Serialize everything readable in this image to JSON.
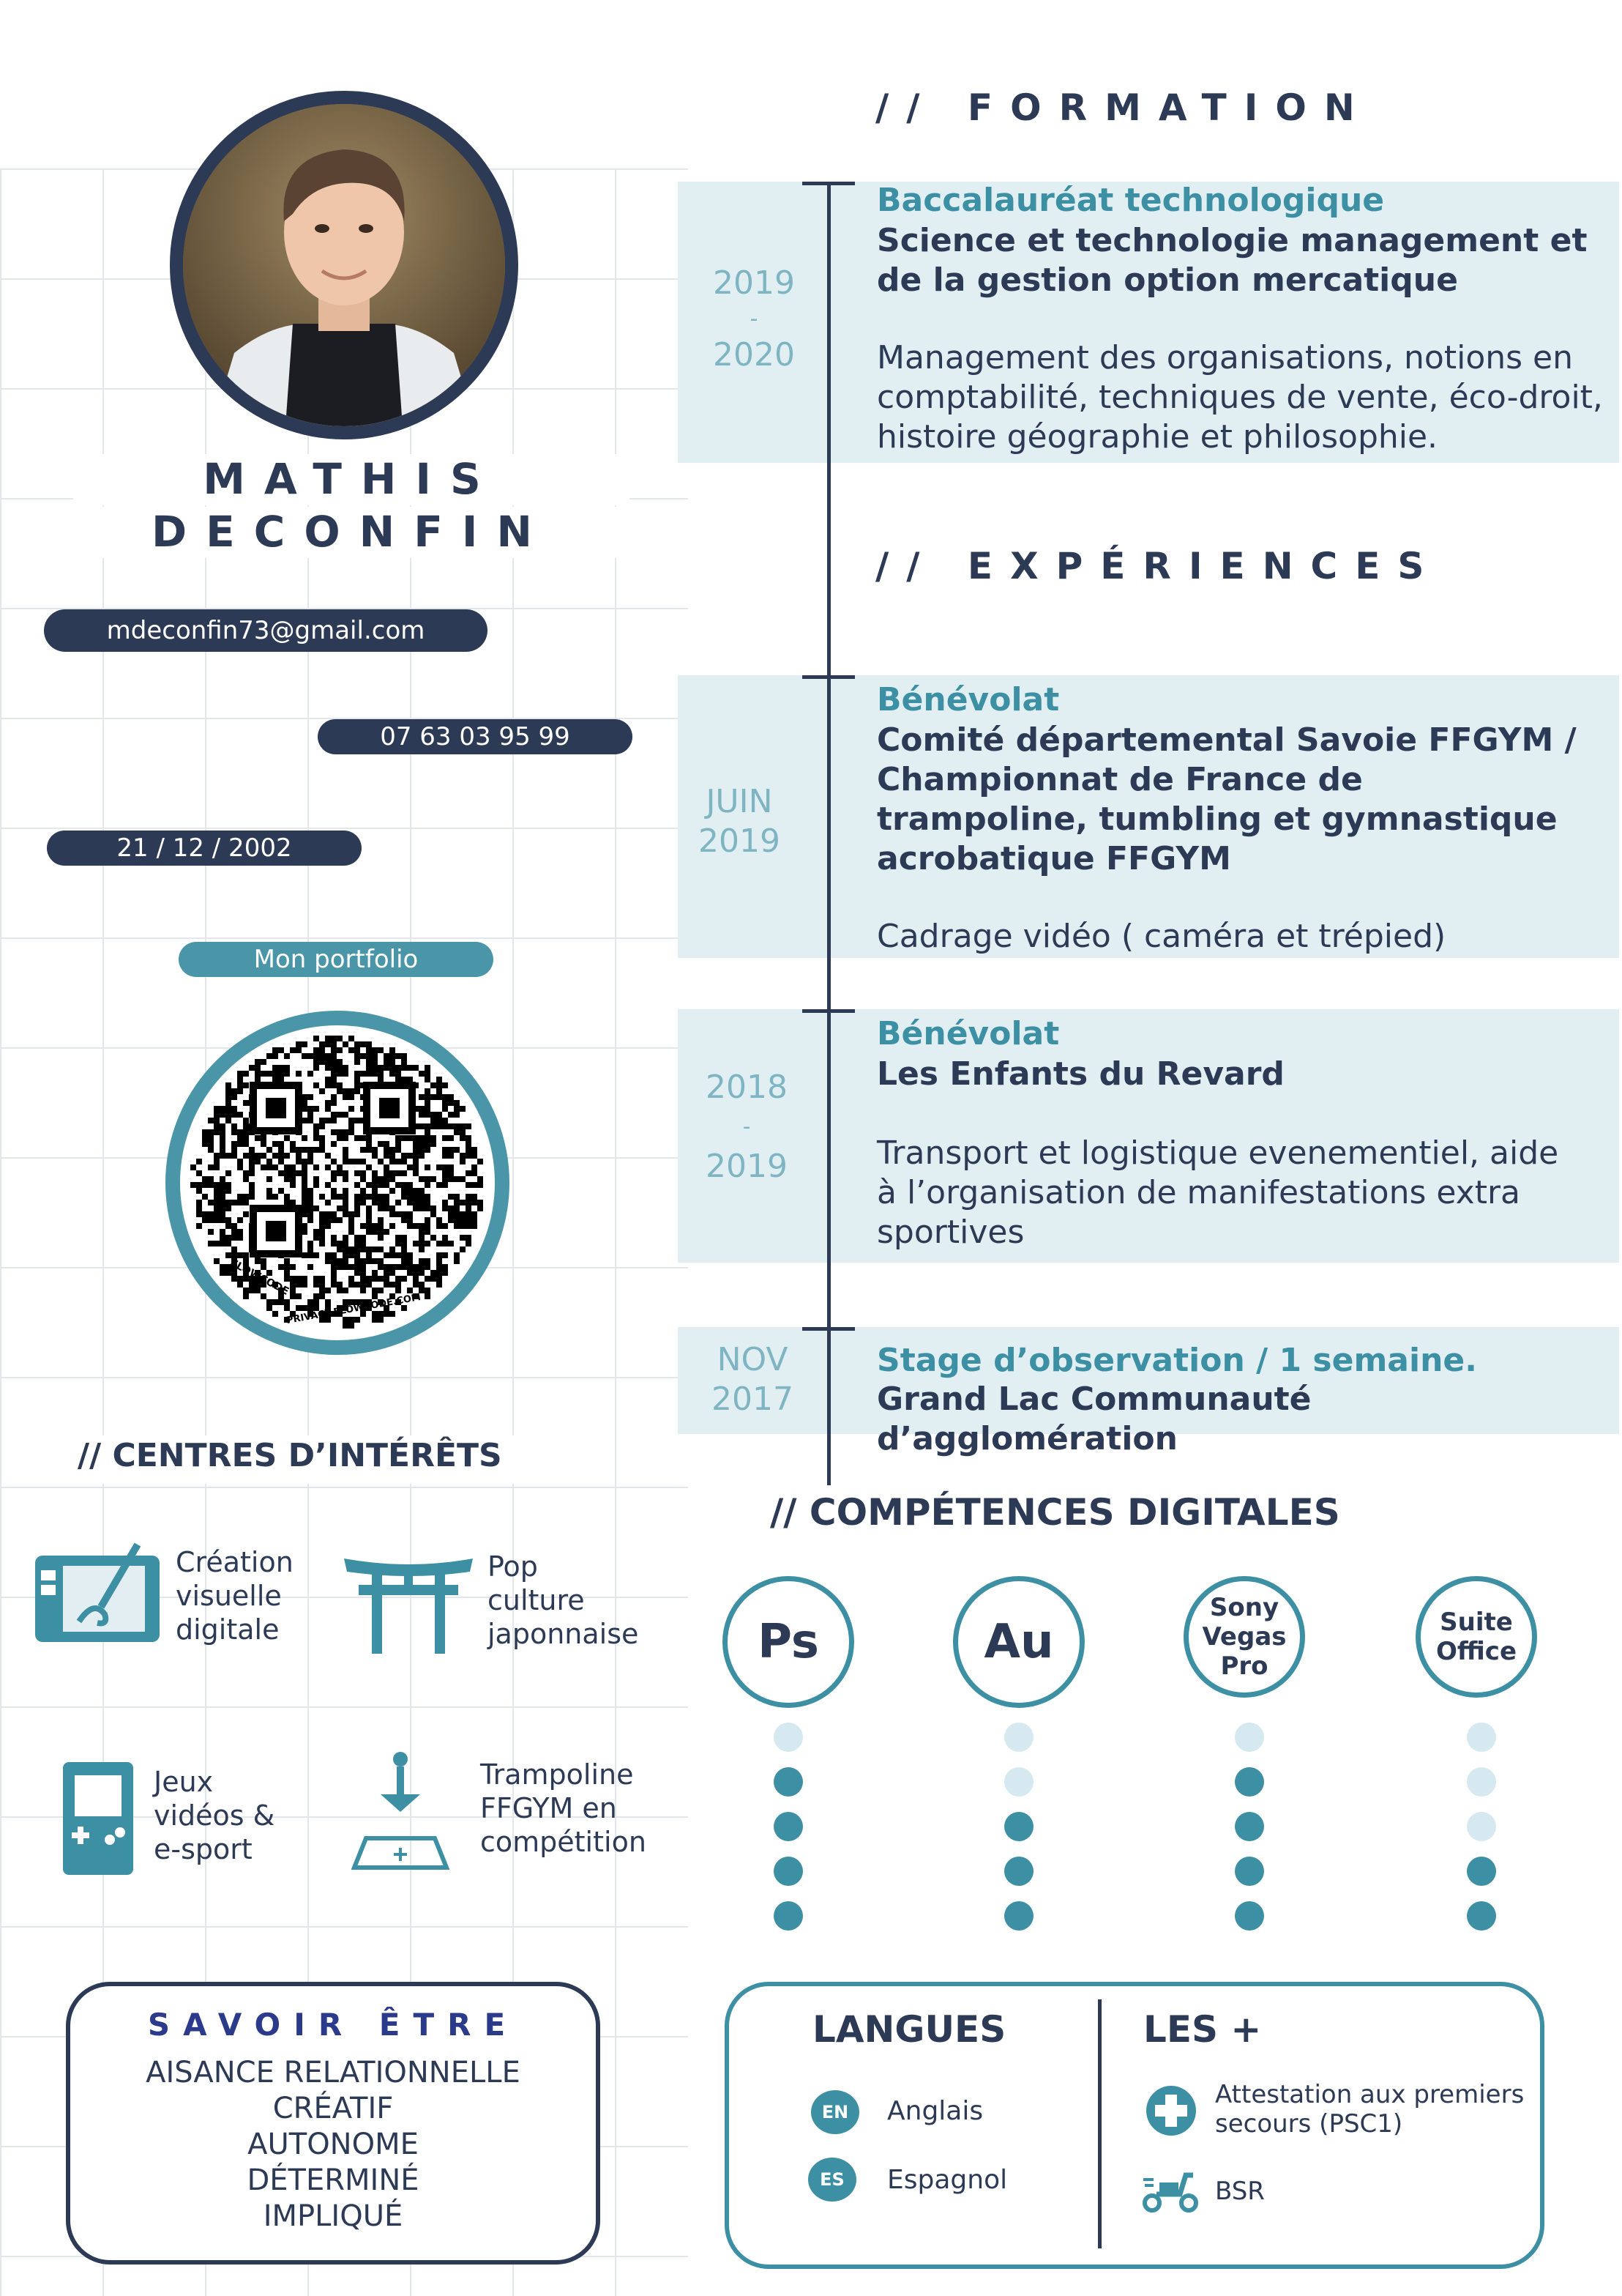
{
  "colors": {
    "navy": "#2d3a55",
    "teal": "#3d8fa3",
    "light_band": "#e1eef2",
    "dot_filled": "#3d8fa3",
    "dot_empty": "#d6e9f0"
  },
  "profile": {
    "first_name": "MATHIS",
    "last_name": "DECONFIN",
    "email": "mdeconfin73@gmail.com",
    "phone": "07 63 03 95 99",
    "birthdate": "21 / 12 / 2002",
    "portfolio_label": "Mon portfolio",
    "qr_caption_left": "FLOWCODE",
    "qr_caption_bottom": "PRIVACY.FLOWCODE.COM"
  },
  "formation": {
    "heading": "// FORMATION",
    "entries": [
      {
        "year_start": "2019",
        "year_sep": "-",
        "year_end": "2020",
        "title": "Baccalauréat technologique",
        "subtitle": "Science et technologie management et de la gestion option mercatique",
        "description": "Management des organisations, notions en comptabilité, techniques de vente, éco-droit, histoire géographie et philosophie."
      }
    ]
  },
  "experiences": {
    "heading": "// EXPÉRIENCES",
    "entries": [
      {
        "date_line1": "JUIN",
        "date_line2": "2019",
        "title": "Bénévolat",
        "subtitle": "Comité départemental Savoie FFGYM / Championnat de France de trampoline, tumbling et gymnastique acrobatique FFGYM",
        "description": "Cadrage vidéo ( caméra et trépied)"
      },
      {
        "date_line1": "2018",
        "date_sep": "-",
        "date_line2": "2019",
        "title": "Bénévolat",
        "subtitle": "Les Enfants du Revard",
        "description": "Transport et logistique evenementiel, aide à l’organisation de manifestations extra sportives"
      },
      {
        "date_line1": "NOV",
        "date_line2": "2017",
        "title": "Stage d’observation / 1 semaine.",
        "subtitle": "Grand Lac Communauté d’agglomération"
      }
    ]
  },
  "interests": {
    "heading": "// CENTRES D’INTÉRÊTS",
    "items": [
      {
        "icon": "drawing-tablet-icon",
        "label_lines": [
          "Création",
          "visuelle",
          "digitale"
        ]
      },
      {
        "icon": "torii-gate-icon",
        "label_lines": [
          "Pop",
          "culture",
          "japonnaise"
        ]
      },
      {
        "icon": "game-console-icon",
        "label_lines": [
          "Jeux",
          "vidéos &",
          "e-sport"
        ]
      },
      {
        "icon": "trampoline-icon",
        "label_lines": [
          "Trampoline",
          "FFGYM en",
          "compétition"
        ]
      }
    ]
  },
  "savoir_etre": {
    "heading": "SAVOIR ÊTRE",
    "items": [
      "AISANCE RELATIONNELLE",
      "CRÉATIF",
      "AUTONOME",
      "DÉTERMINÉ",
      "IMPLIQUÉ"
    ]
  },
  "competences": {
    "heading": "// COMPÉTENCES DIGITALES",
    "skills": [
      {
        "label": "Ps",
        "level": 4,
        "max": 5
      },
      {
        "label": "Au",
        "level": 3,
        "max": 5
      },
      {
        "label": "Sony Vegas Pro",
        "level": 4,
        "max": 5
      },
      {
        "label": "Suite Office",
        "level": 2,
        "max": 5
      }
    ]
  },
  "langues": {
    "heading": "LANGUES",
    "items": [
      {
        "code": "EN",
        "label": "Anglais"
      },
      {
        "code": "ES",
        "label": "Espagnol"
      }
    ]
  },
  "plus": {
    "heading": "LES +",
    "items": [
      {
        "icon": "first-aid-cross-icon",
        "label": "Attestation aux premiers secours (PSC1)"
      },
      {
        "icon": "scooter-icon",
        "label": "BSR"
      }
    ]
  }
}
